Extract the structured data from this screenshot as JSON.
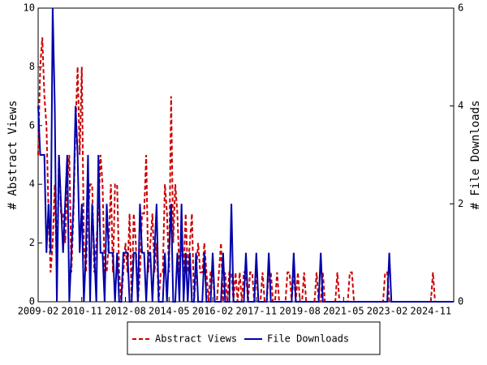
{
  "chart_data": {
    "type": "line",
    "ylabel": "# Abstract Views",
    "y2label": "# File Downloads",
    "x": [
      "2009-02",
      "2009-03",
      "2009-04",
      "2009-05",
      "2009-06",
      "2009-07",
      "2009-08",
      "2009-09",
      "2009-10",
      "2009-11",
      "2009-12",
      "2010-01",
      "2010-02",
      "2010-03",
      "2010-04",
      "2010-05",
      "2010-06",
      "2010-07",
      "2010-08",
      "2010-09",
      "2010-10",
      "2010-11",
      "2010-12",
      "2011-01",
      "2011-02",
      "2011-03",
      "2011-04",
      "2011-05",
      "2011-06",
      "2011-07",
      "2011-08",
      "2011-09",
      "2011-10",
      "2011-11",
      "2011-12",
      "2012-01",
      "2012-02",
      "2012-03",
      "2012-04",
      "2012-05",
      "2012-06",
      "2012-07",
      "2012-08",
      "2012-09",
      "2012-10",
      "2012-11",
      "2012-12",
      "2013-01",
      "2013-02",
      "2013-03",
      "2013-04",
      "2013-05",
      "2013-06",
      "2013-07",
      "2013-08",
      "2013-09",
      "2013-10",
      "2013-11",
      "2013-12",
      "2014-01",
      "2014-02",
      "2014-03",
      "2014-04",
      "2014-05",
      "2014-06",
      "2014-07",
      "2014-08",
      "2014-09",
      "2014-10",
      "2014-11",
      "2014-12",
      "2015-01",
      "2015-02",
      "2015-03",
      "2015-04",
      "2015-05",
      "2015-06",
      "2015-07",
      "2015-08",
      "2015-09",
      "2015-10",
      "2015-11",
      "2015-12",
      "2016-01",
      "2016-02",
      "2016-03",
      "2016-04",
      "2016-05",
      "2016-06",
      "2016-07",
      "2016-08",
      "2016-09",
      "2016-10",
      "2016-11",
      "2016-12",
      "2017-01",
      "2017-02",
      "2017-03",
      "2017-04",
      "2017-05",
      "2017-06",
      "2017-07",
      "2017-08",
      "2017-09",
      "2017-10",
      "2017-11",
      "2017-12",
      "2018-01",
      "2018-02",
      "2018-03",
      "2018-04",
      "2018-05",
      "2018-06",
      "2018-07",
      "2018-08",
      "2018-09",
      "2018-10",
      "2018-11",
      "2018-12",
      "2019-01",
      "2019-02",
      "2019-03",
      "2019-04",
      "2019-05",
      "2019-06",
      "2019-07",
      "2019-08",
      "2019-09",
      "2019-10",
      "2019-11",
      "2019-12",
      "2020-01",
      "2020-02",
      "2020-03",
      "2020-04",
      "2020-05",
      "2020-06",
      "2020-07",
      "2020-08",
      "2020-09",
      "2020-10",
      "2020-11",
      "2020-12",
      "2021-01",
      "2021-02",
      "2021-03",
      "2021-04",
      "2021-05",
      "2021-06",
      "2021-07",
      "2021-08",
      "2021-09",
      "2021-10",
      "2021-11",
      "2021-12",
      "2022-01",
      "2022-02",
      "2022-03",
      "2022-04",
      "2022-05",
      "2022-06",
      "2022-07",
      "2022-08",
      "2022-09",
      "2022-10",
      "2022-11",
      "2022-12",
      "2023-01",
      "2023-02",
      "2023-03",
      "2023-04",
      "2023-05",
      "2023-06",
      "2023-07",
      "2023-08",
      "2023-09",
      "2023-10",
      "2023-11",
      "2023-12",
      "2024-01",
      "2024-02",
      "2024-03",
      "2024-04",
      "2024-05",
      "2024-06",
      "2024-07",
      "2024-08",
      "2024-09",
      "2024-10",
      "2024-11",
      "2024-12",
      "2025-01",
      "2025-02",
      "2025-03",
      "2025-04",
      "2025-05",
      "2025-06",
      "2025-07",
      "2025-08",
      "2025-09",
      "2025-10"
    ],
    "xticks": [
      "2009-02",
      "2010-11",
      "2012-08",
      "2014-05",
      "2016-02",
      "2017-11",
      "2019-08",
      "2021-05",
      "2023-02",
      "2024-11"
    ],
    "series": [
      {
        "name": "Abstract Views",
        "color": "#cc0000",
        "dash": true,
        "axis": "y",
        "values": [
          5,
          8,
          9,
          7,
          6,
          3,
          1,
          2,
          4,
          1,
          5,
          3,
          3,
          2,
          4,
          5,
          1,
          3,
          6,
          8,
          5,
          8,
          2,
          1,
          3,
          4,
          4,
          1,
          2,
          3,
          5,
          4,
          1,
          1,
          2,
          4,
          1,
          4,
          4,
          1,
          0,
          1,
          2,
          1,
          3,
          0,
          3,
          2,
          0,
          1,
          3,
          3,
          5,
          1,
          2,
          3,
          1,
          2,
          0,
          1,
          1,
          4,
          3,
          1,
          7,
          2,
          4,
          3,
          1,
          2,
          1,
          3,
          1,
          2,
          3,
          0,
          1,
          2,
          1,
          1,
          2,
          1,
          0,
          1,
          1,
          0,
          0,
          1,
          2,
          0,
          1,
          0,
          1,
          1,
          0,
          1,
          0,
          1,
          0,
          1,
          1,
          0,
          1,
          1,
          0,
          1,
          0,
          0,
          1,
          0,
          0,
          1,
          1,
          0,
          0,
          1,
          0,
          0,
          0,
          0,
          1,
          1,
          0,
          1,
          0,
          1,
          0,
          0,
          1,
          0,
          0,
          0,
          0,
          0,
          1,
          0,
          0,
          1,
          0,
          0,
          0,
          0,
          0,
          0,
          1,
          0,
          0,
          0,
          0,
          0,
          1,
          1,
          0,
          0,
          0,
          0,
          0,
          0,
          0,
          0,
          0,
          0,
          0,
          0,
          0,
          0,
          0,
          1,
          1,
          0,
          0,
          0,
          0,
          0,
          0,
          0,
          0,
          0,
          0,
          0,
          0,
          0,
          0,
          0,
          0,
          0,
          0,
          0,
          0,
          0,
          1,
          0,
          0,
          0,
          0,
          0,
          0,
          0,
          0,
          0,
          0
        ]
      },
      {
        "name": "File Downloads",
        "color": "#0000aa",
        "dash": false,
        "axis": "y2",
        "values": [
          4,
          3,
          3,
          3,
          1,
          2,
          1,
          6,
          4,
          0,
          3,
          2,
          1,
          2,
          3,
          0,
          1,
          2,
          4,
          3,
          1,
          2,
          0,
          1,
          3,
          0,
          2,
          1,
          0,
          3,
          1,
          1,
          0,
          2,
          1,
          1,
          1,
          0,
          1,
          0,
          0,
          1,
          1,
          1,
          0,
          0,
          1,
          1,
          0,
          2,
          1,
          1,
          0,
          1,
          1,
          0,
          1,
          2,
          0,
          0,
          0,
          1,
          0,
          1,
          2,
          0,
          0,
          1,
          0,
          2,
          0,
          1,
          0,
          1,
          0,
          0,
          1,
          0,
          0,
          0,
          1,
          0,
          0,
          0,
          1,
          0,
          0,
          0,
          0,
          1,
          0,
          0,
          0,
          2,
          0,
          0,
          0,
          0,
          0,
          0,
          1,
          0,
          0,
          0,
          0,
          1,
          0,
          0,
          0,
          0,
          0,
          1,
          0,
          0,
          0,
          0,
          0,
          0,
          0,
          0,
          0,
          0,
          0,
          1,
          0,
          0,
          0,
          0,
          0,
          0,
          0,
          0,
          0,
          0,
          0,
          0,
          1,
          0,
          0,
          0,
          0,
          0,
          0,
          0,
          0,
          0,
          0,
          0,
          0,
          0,
          0,
          0,
          0,
          0,
          0,
          0,
          0,
          0,
          0,
          0,
          0,
          0,
          0,
          0,
          0,
          0,
          0,
          0,
          0,
          1,
          0,
          0,
          0,
          0,
          0,
          0,
          0,
          0,
          0,
          0,
          0,
          0,
          0,
          0,
          0,
          0,
          0,
          0,
          0,
          0,
          0,
          0,
          0,
          0,
          0,
          0,
          0,
          0,
          0,
          0,
          0
        ]
      }
    ],
    "ylim": [
      0,
      10
    ],
    "yticks": [
      0,
      2,
      4,
      6,
      8,
      10
    ],
    "y2lim": [
      0,
      6
    ],
    "y2ticks": [
      0,
      2,
      4,
      6
    ]
  }
}
